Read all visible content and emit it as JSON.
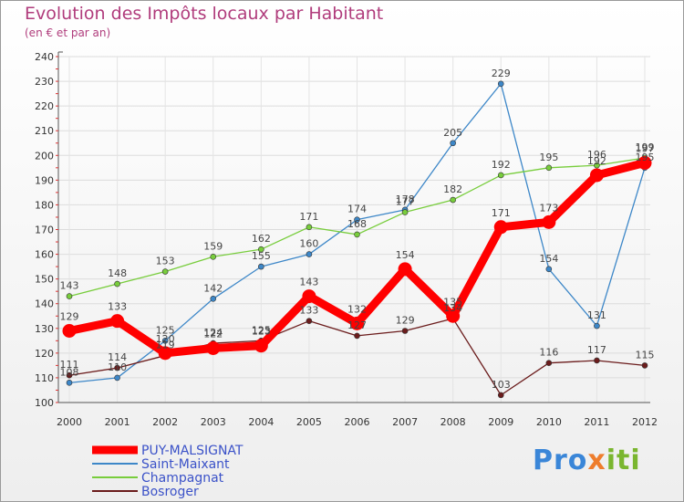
{
  "chart_data": {
    "type": "line",
    "title": "Evolution des Impôts locaux par Habitant",
    "subtitle": "(en € et par an)",
    "x": [
      "2000",
      "2001",
      "2002",
      "2003",
      "2004",
      "2005",
      "2006",
      "2007",
      "2008",
      "2009",
      "2010",
      "2011",
      "2012"
    ],
    "ylim": [
      100,
      240
    ],
    "yticks": [
      100,
      110,
      120,
      130,
      140,
      150,
      160,
      170,
      180,
      190,
      200,
      210,
      220,
      230,
      240
    ],
    "grid": true,
    "series": [
      {
        "name": "PUY-MALSIGNAT",
        "color": "#ff0000",
        "values": [
          129,
          133,
          120,
          122,
          123,
          143,
          132,
          154,
          135,
          171,
          173,
          192,
          197
        ]
      },
      {
        "name": "Saint-Maixant",
        "color": "#3d87c8",
        "values": [
          108,
          110,
          125,
          142,
          155,
          160,
          174,
          178,
          205,
          229,
          154,
          131,
          195
        ]
      },
      {
        "name": "Champagnat",
        "color": "#78cd3c",
        "values": [
          143,
          148,
          153,
          159,
          162,
          171,
          168,
          177,
          182,
          192,
          195,
          196,
          199
        ]
      },
      {
        "name": "Bosroger",
        "color": "#6b1c1c",
        "values": [
          111,
          114,
          119,
          124,
          125,
          133,
          127,
          129,
          134,
          103,
          116,
          117,
          115
        ]
      }
    ]
  },
  "logo": {
    "text": "Proxiti",
    "c1": "Pro",
    "c2": "x",
    "c3": "iti"
  }
}
